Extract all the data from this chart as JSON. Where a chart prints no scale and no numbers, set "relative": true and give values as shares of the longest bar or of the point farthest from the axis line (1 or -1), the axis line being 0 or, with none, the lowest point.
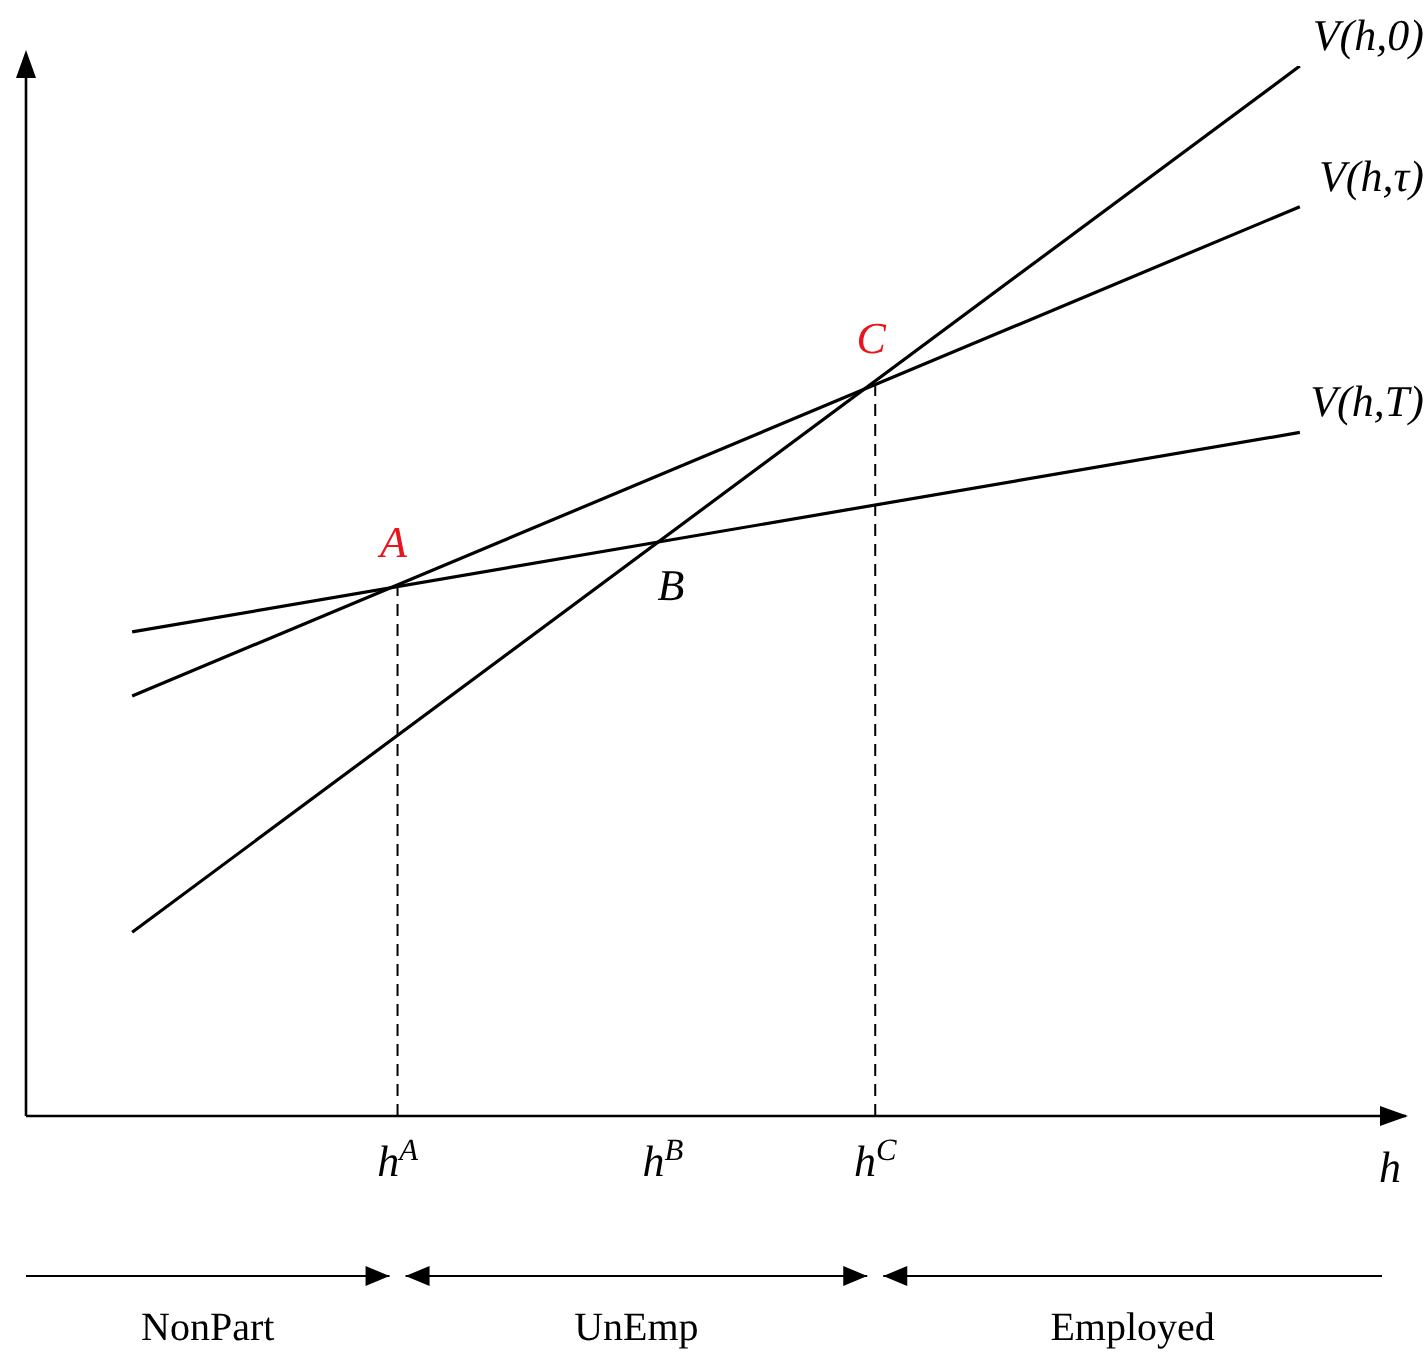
{
  "chart_data": {
    "type": "line",
    "relative": true,
    "marker": "none",
    "categories": [
      null,
      null,
      null,
      null,
      null,
      null,
      null,
      "h$^{A}$",
      null,
      null,
      null,
      null,
      "h$^{B}$",
      null,
      null,
      null,
      "h$^{C}$",
      null,
      null,
      null,
      null,
      null,
      null,
      null,
      null,
      null,
      null
    ],
    "xlabel": "h",
    "series": [
      {
        "name": "V(h,0)",
        "color": "#000000",
        "values": [
          null,
          null,
          0.175,
          null,
          null,
          null,
          null,
          null,
          null,
          null,
          null,
          null,
          null,
          null,
          null,
          null,
          null,
          null,
          null,
          null,
          null,
          null,
          null,
          null,
          1,
          null,
          null
        ]
      },
      {
        "name": "V(h,τ)",
        "color": "#000000",
        "values": [
          null,
          null,
          0.4,
          null,
          null,
          null,
          null,
          null,
          null,
          null,
          null,
          null,
          null,
          null,
          null,
          null,
          null,
          null,
          null,
          null,
          null,
          null,
          null,
          null,
          0.866,
          null,
          null
        ]
      },
      {
        "name": "V(h,T)",
        "color": "#000000",
        "values": [
          null,
          null,
          0.461,
          null,
          null,
          null,
          null,
          null,
          null,
          null,
          null,
          null,
          null,
          null,
          null,
          null,
          null,
          null,
          null,
          null,
          null,
          null,
          null,
          null,
          0.651,
          null,
          null
        ]
      }
    ],
    "ref_lines": [
      {
        "axis": "x",
        "value": "h$^{A}$",
        "label": "A",
        "line_style": "dashed"
      },
      {
        "axis": "x",
        "value": "h$^{C}$",
        "label": "C",
        "line_style": "dashed"
      }
    ],
    "annotations": [
      {
        "text": "B",
        "x": "h$^{B}$",
        "y": 0.549
      },
      "NonPart",
      "UnEmp",
      "Employed"
    ]
  }
}
